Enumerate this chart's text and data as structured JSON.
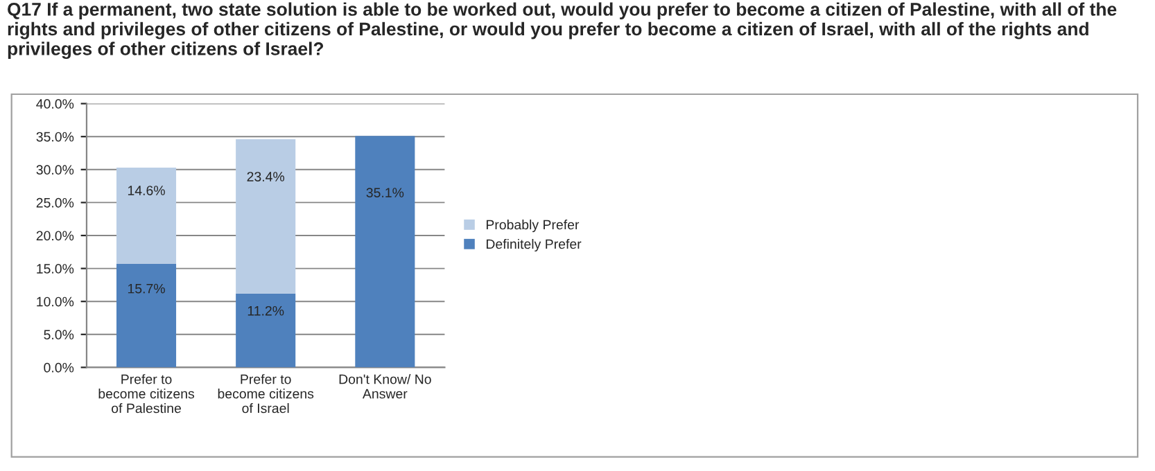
{
  "chart_data": {
    "type": "bar",
    "stacked": true,
    "title": "Q17 If a permanent, two state solution is able to be worked out, would you prefer to become a citizen of Palestine, with all of the rights and privileges of other citizens of Palestine, or would you prefer to become a citizen of Israel, with all of the rights and privileges of other citizens of Israel?",
    "categories": [
      "Prefer to become citizens of Palestine",
      "Prefer to become citizens of Israel",
      "Don't Know/ No Answer"
    ],
    "series": [
      {
        "name": "Definitely Prefer",
        "color": "#4f81bd",
        "values": [
          15.7,
          11.2,
          35.1
        ],
        "value_labels": [
          "15.7%",
          "11.2%",
          "35.1%"
        ]
      },
      {
        "name": "Probably Prefer",
        "color": "#b9cde5",
        "values": [
          14.6,
          23.4,
          null
        ],
        "value_labels": [
          "14.6%",
          "23.4%",
          null
        ]
      }
    ],
    "ylim": [
      0,
      40
    ],
    "yticks": [
      {
        "value": 0,
        "label": "0.0%"
      },
      {
        "value": 5,
        "label": "5.0%"
      },
      {
        "value": 10,
        "label": "10.0%"
      },
      {
        "value": 15,
        "label": "15.0%"
      },
      {
        "value": 20,
        "label": "20.0%"
      },
      {
        "value": 25,
        "label": "25.0%"
      },
      {
        "value": 30,
        "label": "30.0%"
      },
      {
        "value": 35,
        "label": "35.0%"
      },
      {
        "value": 40,
        "label": "40.0%"
      }
    ],
    "grid": "y",
    "legend": "right"
  }
}
